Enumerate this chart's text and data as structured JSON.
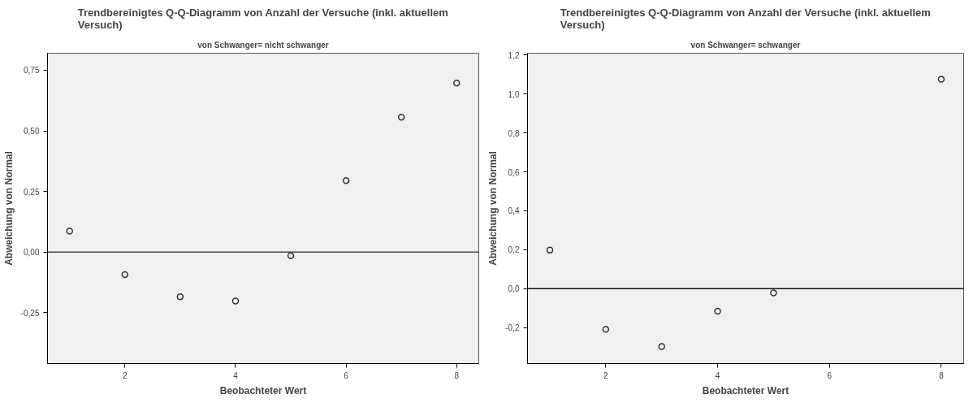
{
  "chart_data": [
    {
      "type": "scatter",
      "title": "Trendbereinigtes Q-Q-Diagramm von Anzahl der Versuche (inkl. aktuellem Versuch)",
      "subtitle": "von Schwanger= nicht schwanger",
      "xlabel": "Beobachteter Wert",
      "ylabel": "Abweichung von Normal",
      "x": [
        1,
        2,
        3,
        4,
        5,
        6,
        7,
        8
      ],
      "series": [
        {
          "color": "#333333",
          "values": [
            0.086,
            -0.093,
            -0.184,
            -0.202,
            -0.015,
            0.295,
            0.556,
            0.697
          ]
        }
      ],
      "xlim": [
        0.6,
        8.4
      ],
      "xticks": [
        2,
        4,
        6,
        8
      ],
      "ylim": [
        -0.46,
        0.82
      ],
      "yticks": [
        {
          "value": -0.25,
          "label": "-0,25"
        },
        {
          "value": 0,
          "label": "0,00"
        },
        {
          "value": 0.25,
          "label": "0,25"
        },
        {
          "value": 0.5,
          "label": "0,50"
        },
        {
          "value": 0.75,
          "label": "0,75"
        }
      ],
      "ref_lines": [
        {
          "axis": "y",
          "value": 0,
          "color": "#444444"
        }
      ],
      "grid": false,
      "marker": "circle"
    },
    {
      "type": "scatter",
      "title": "Trendbereinigtes Q-Q-Diagramm von Anzahl der Versuche (inkl. aktuellem Versuch)",
      "subtitle": "von Schwanger= schwanger",
      "xlabel": "Beobachteter Wert",
      "ylabel": "Abweichung von Normal",
      "x": [
        1,
        2,
        3,
        4,
        5,
        8
      ],
      "series": [
        {
          "color": "#333333",
          "values": [
            0.198,
            -0.209,
            -0.297,
            -0.116,
            -0.022,
            1.076
          ]
        }
      ],
      "xlim": [
        0.6,
        8.4
      ],
      "xticks": [
        2,
        4,
        6,
        8
      ],
      "ylim": [
        -0.385,
        1.21
      ],
      "yticks": [
        {
          "value": -0.2,
          "label": "-0,2"
        },
        {
          "value": 0,
          "label": "0,0"
        },
        {
          "value": 0.2,
          "label": "0,2"
        },
        {
          "value": 0.4,
          "label": "0,4"
        },
        {
          "value": 0.6,
          "label": "0,6"
        },
        {
          "value": 0.8,
          "label": "0,8"
        },
        {
          "value": 1.0,
          "label": "1,0"
        },
        {
          "value": 1.2,
          "label": "1,2"
        }
      ],
      "ref_lines": [
        {
          "axis": "y",
          "value": 0,
          "color": "#111111"
        }
      ],
      "grid": false,
      "marker": "circle"
    }
  ]
}
